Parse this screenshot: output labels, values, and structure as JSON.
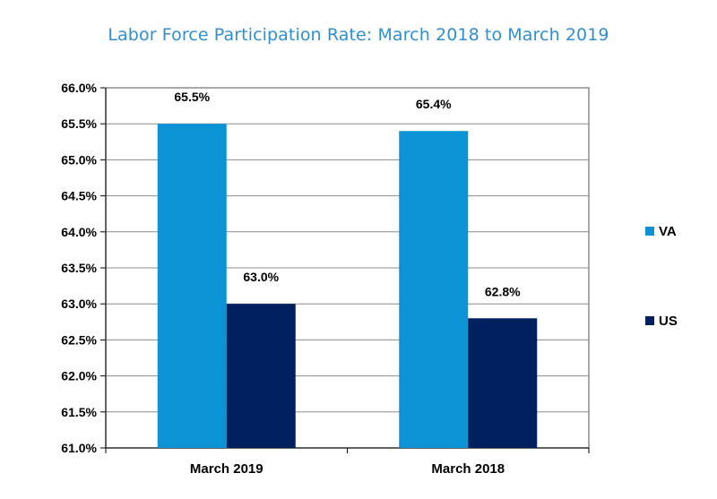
{
  "chart_data": {
    "type": "bar",
    "title": "Labor Force Participation Rate:  March 2018 to March 2019",
    "categories": [
      "March 2019",
      "March 2018"
    ],
    "series": [
      {
        "name": "VA",
        "values": [
          65.5,
          65.4
        ],
        "color": "#0b93d6",
        "data_labels": [
          "65.5%",
          "65.4%"
        ]
      },
      {
        "name": "US",
        "values": [
          63.0,
          62.8
        ],
        "color": "#002060",
        "data_labels": [
          "63.0%",
          "62.8%"
        ]
      }
    ],
    "ylim": [
      61.0,
      66.0
    ],
    "yticks": [
      {
        "value": 61.0,
        "label": "61.0%"
      },
      {
        "value": 61.5,
        "label": "61.5%"
      },
      {
        "value": 62.0,
        "label": "62.0%"
      },
      {
        "value": 62.5,
        "label": "62.5%"
      },
      {
        "value": 63.0,
        "label": "63.0%"
      },
      {
        "value": 63.5,
        "label": "63.5%"
      },
      {
        "value": 64.0,
        "label": "64.0%"
      },
      {
        "value": 64.5,
        "label": "64.5%"
      },
      {
        "value": 65.0,
        "label": "65.0%"
      },
      {
        "value": 65.5,
        "label": "65.5%"
      },
      {
        "value": 66.0,
        "label": "66.0%"
      }
    ],
    "xlabel": "",
    "ylabel": "",
    "grid": true,
    "legend_position": "right"
  }
}
